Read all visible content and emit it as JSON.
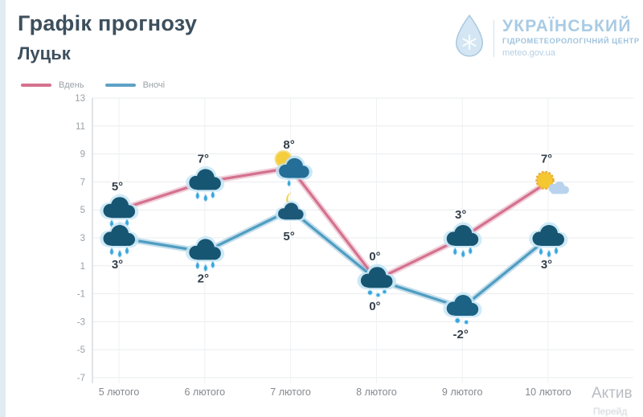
{
  "page": {
    "title": "Графік прогнозу",
    "city": "Луцьк"
  },
  "logo": {
    "org_name": "УКРАЇНСЬКИЙ",
    "org_subtitle": "гідрометеорологічний центр",
    "website": "meteo.gov.ua",
    "accent_color": "#a9cbe4",
    "drop_icon": "water-drop-with-snowflake"
  },
  "legend": {
    "items": [
      {
        "label": "Вдень",
        "color": "#d4718e"
      },
      {
        "label": "Вночі",
        "color": "#5ea2c6"
      }
    ]
  },
  "chart_data": {
    "type": "line",
    "categories": [
      "5 лютого",
      "6 лютого",
      "7 лютого",
      "8 лютого",
      "9 лютого",
      "10 лютого"
    ],
    "series": [
      {
        "name": "Вдень",
        "color": "#d4718e",
        "values": [
          5,
          7,
          8,
          0,
          3,
          7
        ],
        "labels": [
          "5°",
          "7°",
          "8°",
          "0°",
          "3°",
          "7°"
        ],
        "icons": [
          "rain-cloud",
          "rain-cloud",
          "sun-behind-rain-cloud",
          "sleet-cloud",
          "rain-cloud",
          "sun-with-cloud"
        ]
      },
      {
        "name": "Вночі",
        "color": "#4f9dc2",
        "values": [
          3,
          2,
          5,
          0,
          -2,
          3
        ],
        "labels": [
          "3°",
          "2°",
          "5°",
          "0°",
          "-2°",
          "3°"
        ],
        "icons": [
          "rain-cloud",
          "rain-cloud",
          "moon-behind-cloud",
          "sleet-cloud",
          "snow-cloud",
          "rain-cloud"
        ]
      }
    ],
    "ylim": [
      -7,
      13
    ],
    "ytick_step": 2,
    "yticks": [
      13,
      11,
      9,
      7,
      5,
      3,
      1,
      -1,
      -3,
      -5,
      -7
    ],
    "grid": true,
    "legend_position": "top-left",
    "title": "Графік прогнозу",
    "xlabel": "",
    "ylabel": ""
  },
  "watermark": {
    "line1": "Актив",
    "line2": "Перейд"
  }
}
